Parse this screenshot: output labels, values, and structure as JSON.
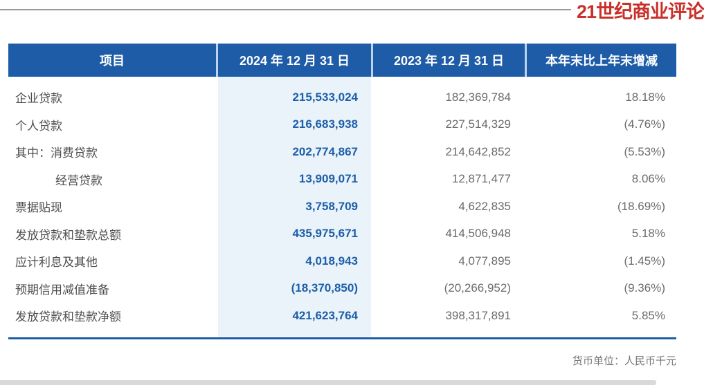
{
  "brand": {
    "logo_text": "21世纪商业评论"
  },
  "chart_data": {
    "type": "table",
    "columns": [
      "项目",
      "2024 年 12 月 31 日",
      "2023 年 12 月 31 日",
      "本年末比上年末增减"
    ],
    "rows": [
      {
        "label": "企业贷款",
        "v2024": "215,533,024",
        "v2023": "182,369,784",
        "change": "18.18%",
        "indent": 0
      },
      {
        "label": "个人贷款",
        "v2024": "216,683,938",
        "v2023": "227,514,329",
        "change": "(4.76%)",
        "indent": 0
      },
      {
        "label": "其中：消费贷款",
        "v2024": "202,774,867",
        "v2023": "214,642,852",
        "change": "(5.53%)",
        "indent": 0
      },
      {
        "label": "经营贷款",
        "v2024": "13,909,071",
        "v2023": "12,871,477",
        "change": "8.06%",
        "indent": 1
      },
      {
        "label": "票据贴现",
        "v2024": "3,758,709",
        "v2023": "4,622,835",
        "change": "(18.69%)",
        "indent": 0
      },
      {
        "label": "发放贷款和垫款总额",
        "v2024": "435,975,671",
        "v2023": "414,506,948",
        "change": "5.18%",
        "indent": 0
      },
      {
        "label": "应计利息及其他",
        "v2024": "4,018,943",
        "v2023": "4,077,895",
        "change": "(1.45%)",
        "indent": 0
      },
      {
        "label": "预期信用减值准备",
        "v2024": "(18,370,850)",
        "v2023": "(20,266,952)",
        "change": "(9.36%)",
        "indent": 0
      },
      {
        "label": "发放贷款和垫款净额",
        "v2024": "421,623,764",
        "v2023": "398,317,891",
        "change": "5.85%",
        "indent": 0
      }
    ],
    "unit_note": "货币单位：人民币千元",
    "highlighted_column": "2024 年 12 月 31 日"
  },
  "colors": {
    "header_bg": "#1E5CA8",
    "highlight_col_bg": "#EAF2FA",
    "value_blue": "#1D5FA9",
    "logo_red": "#C9302A",
    "rule_gray": "#9A9A9A",
    "bottom_bar_gray": "#D9D9D9"
  }
}
